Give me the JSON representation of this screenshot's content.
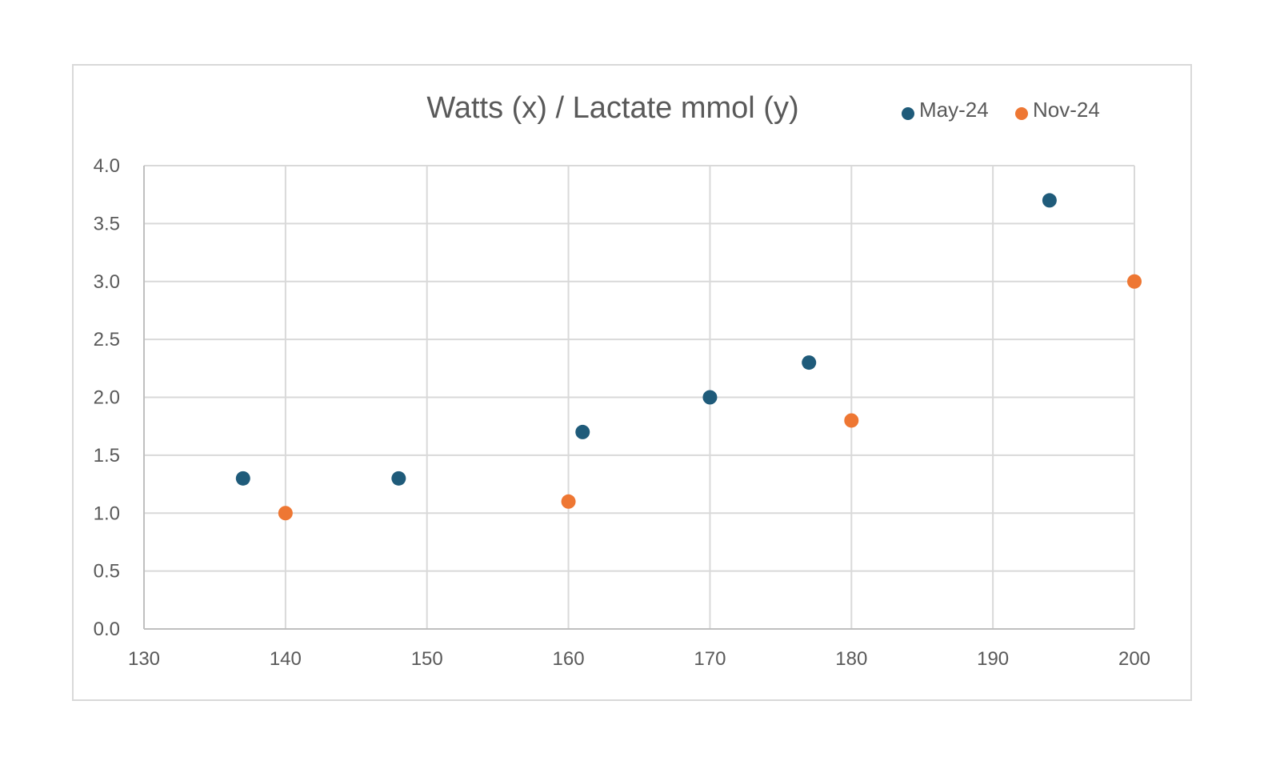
{
  "chart_data": {
    "type": "scatter",
    "title": "Watts (x) / Lactate mmol (y)",
    "xlabel": "",
    "ylabel": "",
    "xlim": [
      130,
      200
    ],
    "ylim": [
      0,
      4
    ],
    "x_ticks": [
      "130",
      "140",
      "150",
      "160",
      "170",
      "180",
      "190",
      "200"
    ],
    "y_ticks": [
      "0.0",
      "0.5",
      "1.0",
      "1.5",
      "2.0",
      "2.5",
      "3.0",
      "3.5",
      "4.0"
    ],
    "grid": true,
    "legend_position": "top-right",
    "series": [
      {
        "name": "May-24",
        "color": "#1f5b7a",
        "points": [
          {
            "x": 137,
            "y": 1.3
          },
          {
            "x": 148,
            "y": 1.3
          },
          {
            "x": 161,
            "y": 1.7
          },
          {
            "x": 170,
            "y": 2.0
          },
          {
            "x": 177,
            "y": 2.3
          },
          {
            "x": 194,
            "y": 3.7
          }
        ]
      },
      {
        "name": "Nov-24",
        "color": "#ee7733",
        "points": [
          {
            "x": 140,
            "y": 1.0
          },
          {
            "x": 160,
            "y": 1.1
          },
          {
            "x": 180,
            "y": 1.8
          },
          {
            "x": 200,
            "y": 3.0
          }
        ]
      }
    ]
  }
}
